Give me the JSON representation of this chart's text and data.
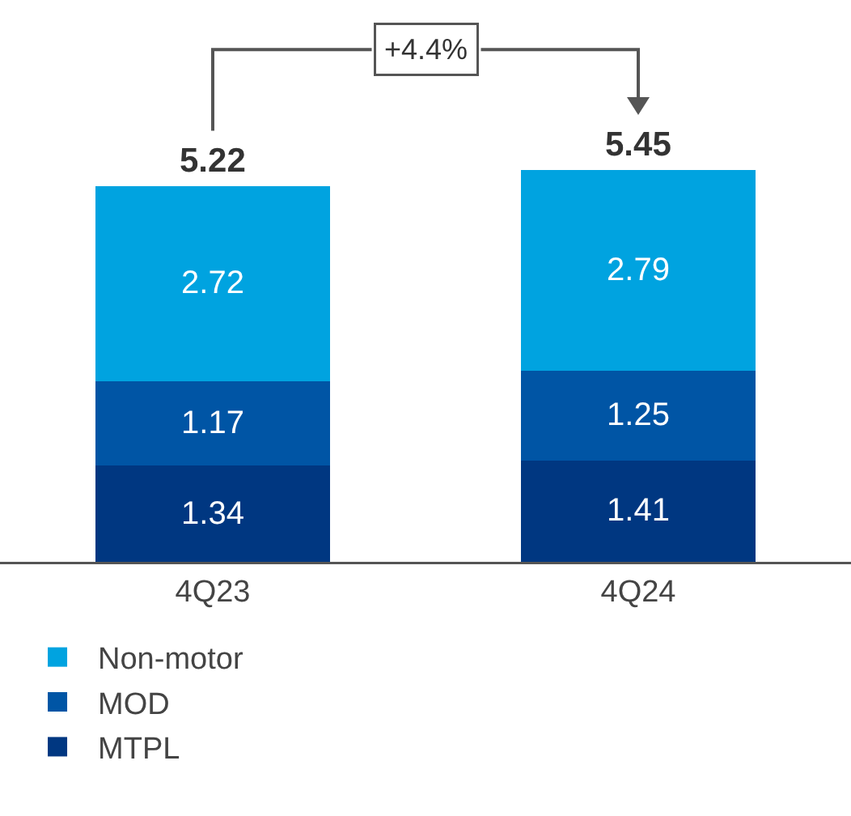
{
  "chart_data": {
    "type": "bar",
    "stacked": true,
    "categories": [
      "4Q23",
      "4Q24"
    ],
    "series": [
      {
        "name": "MTPL",
        "color": "#003781",
        "values": [
          1.34,
          1.41
        ]
      },
      {
        "name": "MOD",
        "color": "#0055a5",
        "values": [
          1.17,
          1.25
        ]
      },
      {
        "name": "Non-motor",
        "color": "#00a3e0",
        "values": [
          2.72,
          2.79
        ]
      }
    ],
    "data_labels": true,
    "totals": [
      "5.22",
      "5.45"
    ],
    "annotations": [
      "+4.4%"
    ],
    "ylim": [
      0,
      7.5
    ],
    "tick_labels": "x",
    "grid": false,
    "legend": "bottom left"
  }
}
